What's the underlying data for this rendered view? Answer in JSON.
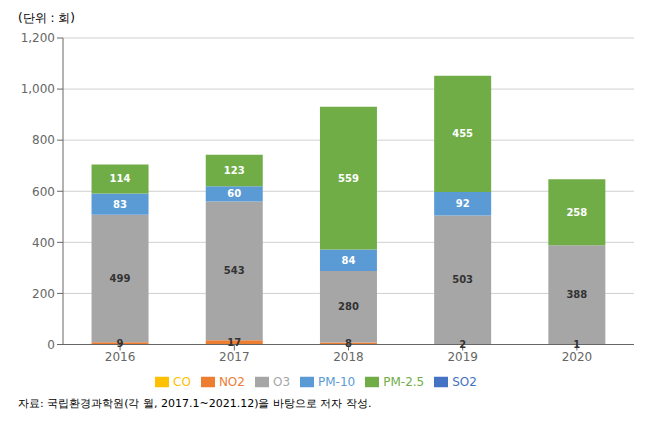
{
  "chart_data": {
    "type": "bar",
    "stacked": true,
    "data_labels": true,
    "grid": true,
    "legend": "bottom",
    "ylabel": "(단위 : 회)",
    "annotations": [
      "자료: 국립환경과학원(각 월, 2017.1~2021.12)을 바탕으로 저자 작성."
    ],
    "categories": [
      "2016",
      "2017",
      "2018",
      "2019",
      "2020"
    ],
    "series": [
      {
        "name": "SO2",
        "color": "#4472c4",
        "values": [
          0,
          0,
          0,
          0,
          0
        ]
      },
      {
        "name": "NO2",
        "color": "#ed7d31",
        "values": [
          9,
          17,
          8,
          2,
          1
        ]
      },
      {
        "name": "O3",
        "color": "#a6a6a6",
        "values": [
          499,
          543,
          280,
          503,
          388
        ]
      },
      {
        "name": "CO",
        "color": "#ffc000",
        "values": [
          0,
          0,
          0,
          0,
          0
        ]
      },
      {
        "name": "PM-10",
        "color": "#5b9bd5",
        "values": [
          83,
          60,
          84,
          92,
          0
        ]
      },
      {
        "name": "PM-2.5",
        "color": "#70ad47",
        "values": [
          114,
          123,
          559,
          455,
          258
        ]
      }
    ],
    "ylim": [
      0,
      1200
    ],
    "yticks": [
      0,
      200,
      400,
      600,
      800,
      {
        "value": 1000,
        "label": "1,000"
      },
      {
        "value": 1200,
        "label": "1,200"
      }
    ]
  }
}
